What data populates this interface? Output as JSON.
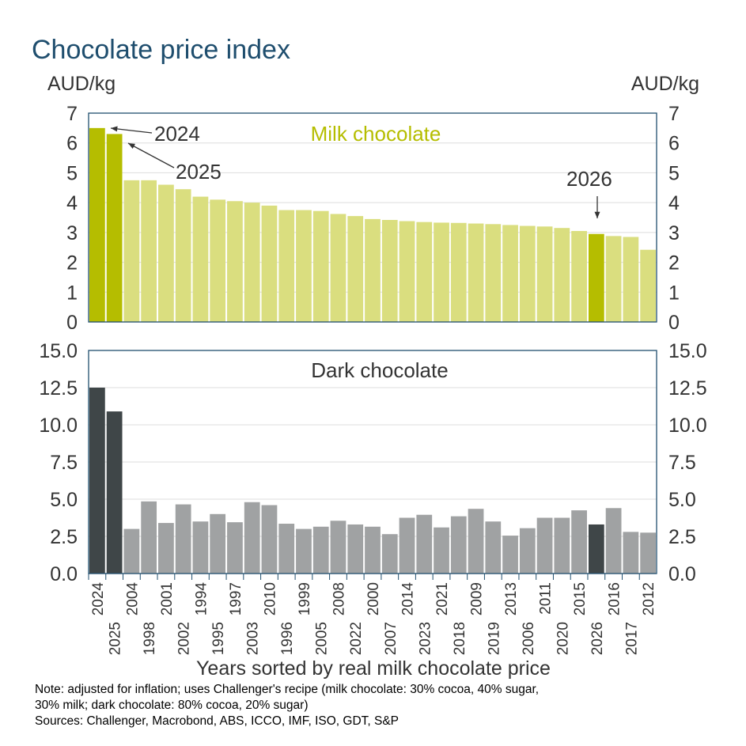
{
  "title": "Chocolate price index",
  "note_lines": [
    "Note: adjusted for inflation; uses Challenger's recipe (milk chocolate: 30% cocoa, 40% sugar,",
    "30% milk; dark chocolate: 80% cocoa, 20% sugar)",
    "Sources: Challenger, Macrobond, ABS, ICCO, IMF, ISO, GDT, S&P"
  ],
  "chart_data": [
    {
      "type": "bar",
      "title": "Milk chocolate",
      "ylabel_left": "AUD/kg",
      "ylabel_right": "AUD/kg",
      "ylim": [
        0,
        7
      ],
      "yticks": [
        "0",
        "1",
        "2",
        "3",
        "4",
        "5",
        "6",
        "7"
      ],
      "grid": true,
      "color": "#dade7f",
      "highlight_color": "#b5bd00",
      "categories": [
        "2024",
        "2025",
        "2004",
        "1998",
        "2001",
        "2002",
        "1994",
        "1995",
        "1997",
        "2003",
        "2010",
        "1996",
        "1999",
        "2005",
        "2008",
        "2022",
        "2000",
        "2007",
        "2014",
        "2023",
        "2021",
        "2018",
        "2009",
        "2019",
        "2013",
        "2006",
        "2011",
        "2020",
        "2015",
        "2026",
        "2016",
        "2017",
        "2012"
      ],
      "values": [
        6.5,
        6.3,
        4.75,
        4.75,
        4.6,
        4.45,
        4.2,
        4.1,
        4.05,
        4.0,
        3.9,
        3.75,
        3.75,
        3.72,
        3.62,
        3.55,
        3.45,
        3.42,
        3.38,
        3.35,
        3.33,
        3.32,
        3.3,
        3.28,
        3.25,
        3.22,
        3.2,
        3.15,
        3.05,
        2.95,
        2.88,
        2.85,
        2.42
      ],
      "highlighted": [
        "2024",
        "2025",
        "2026"
      ],
      "annotations": [
        "2024",
        "2025",
        "2026"
      ]
    },
    {
      "type": "bar",
      "title": "Dark chocolate",
      "ylim": [
        0,
        15
      ],
      "yticks": [
        "0.0",
        "2.5",
        "5.0",
        "7.5",
        "10.0",
        "12.5",
        "15.0"
      ],
      "grid": true,
      "color": "#a0a2a3",
      "highlight_color": "#3f4648",
      "xlabel": "Years sorted by real milk chocolate price",
      "values": [
        12.5,
        10.9,
        3.0,
        4.85,
        3.4,
        4.65,
        3.5,
        4.0,
        3.45,
        4.8,
        4.6,
        3.35,
        3.0,
        3.15,
        3.55,
        3.3,
        3.15,
        2.65,
        3.75,
        3.95,
        3.1,
        3.85,
        4.35,
        3.5,
        2.55,
        3.05,
        3.75,
        3.75,
        4.25,
        3.3,
        4.4,
        2.8,
        2.75
      ]
    }
  ]
}
